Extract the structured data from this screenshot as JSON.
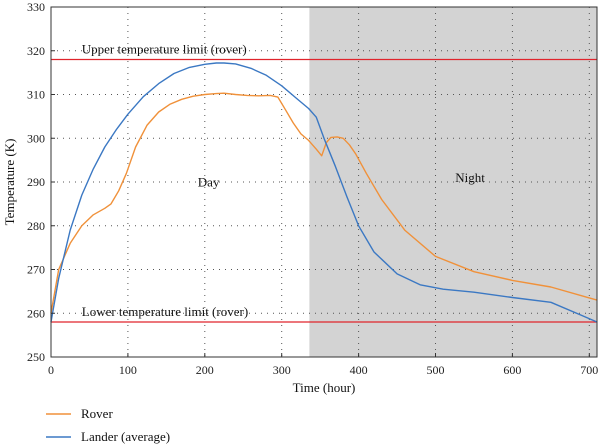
{
  "chart_data": {
    "type": "line",
    "xlabel": "Time (hour)",
    "ylabel": "Temperature (K)",
    "xlim": [
      0,
      710
    ],
    "ylim": [
      250,
      330
    ],
    "xticks": [
      0,
      100,
      200,
      300,
      400,
      500,
      600,
      700
    ],
    "yticks": [
      250,
      260,
      270,
      280,
      290,
      300,
      310,
      320,
      330
    ],
    "grid": true,
    "night_start": 336,
    "colors": {
      "rover": "#f0913a",
      "lander": "#3b78c3",
      "limit": "#e0242c",
      "night": "#d3d3d3",
      "grid": "#555555"
    },
    "limits": [
      {
        "label": "Upper temperature limit (rover)",
        "value": 318
      },
      {
        "label": "Lower temperature limit (rover)",
        "value": 258
      }
    ],
    "annotations": [
      {
        "text": "Day",
        "x": 205,
        "y": 289
      },
      {
        "text": "Night",
        "x": 545,
        "y": 290
      }
    ],
    "legend_position": "bottom-left",
    "series": [
      {
        "name": "Rover",
        "color": "#f0913a",
        "x": [
          0,
          10,
          25,
          40,
          55,
          70,
          78,
          88,
          98,
          110,
          125,
          140,
          155,
          170,
          185,
          200,
          215,
          225,
          240,
          255,
          270,
          285,
          295,
          305,
          315,
          325,
          335,
          345,
          352,
          358,
          364,
          372,
          380,
          388,
          396,
          410,
          430,
          460,
          500,
          550,
          600,
          650,
          700,
          710
        ],
        "y": [
          260,
          270,
          276,
          280,
          282.5,
          284,
          285,
          288,
          292,
          298,
          303,
          306,
          307.8,
          308.9,
          309.6,
          310,
          310.2,
          310.3,
          310,
          309.8,
          309.7,
          309.8,
          309.4,
          306.5,
          303.5,
          301,
          299.5,
          297.5,
          296,
          299,
          300.2,
          300.3,
          300,
          298.5,
          296.5,
          292,
          286,
          279,
          273,
          269.5,
          267.5,
          266,
          263.5,
          263
        ]
      },
      {
        "name": "Lander (average)",
        "color": "#3b78c3",
        "x": [
          0,
          10,
          25,
          40,
          55,
          70,
          85,
          100,
          120,
          140,
          160,
          180,
          200,
          215,
          225,
          240,
          260,
          280,
          300,
          320,
          335,
          345,
          355,
          370,
          385,
          400,
          420,
          450,
          480,
          510,
          550,
          600,
          650,
          690,
          710
        ],
        "y": [
          258,
          268,
          279,
          287,
          293,
          298,
          302,
          305.5,
          309.5,
          312.5,
          314.8,
          316.2,
          316.9,
          317.2,
          317.2,
          317,
          316,
          314.4,
          312,
          309,
          306.8,
          304.8,
          300,
          293.5,
          286.5,
          280,
          274,
          269,
          266.5,
          265.5,
          264.8,
          263.6,
          262.5,
          259.5,
          258
        ]
      }
    ]
  }
}
